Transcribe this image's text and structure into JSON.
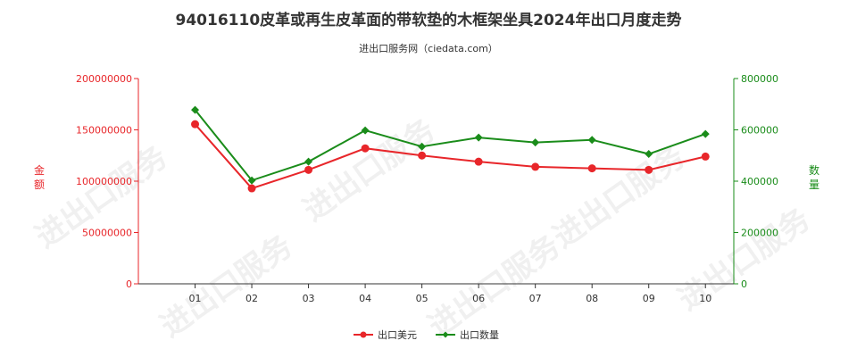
{
  "title": "94016110皮革或再生皮革面的带软垫的木框架坐具2024年出口月度走势",
  "subtitle": "进出口服务网（ciedata.com）",
  "colors": {
    "value": "#e8262a",
    "quantity": "#1a8c1a",
    "left_axis": "#e8262a",
    "right_axis": "#1a8c1a"
  },
  "chart_data": {
    "type": "line",
    "categories": [
      "01",
      "02",
      "03",
      "04",
      "05",
      "06",
      "07",
      "08",
      "09",
      "10"
    ],
    "y_left": {
      "label": "金额",
      "ylim": [
        0,
        200000000
      ],
      "ticks": [
        "0",
        "50000000",
        "100000000",
        "150000000",
        "200000000"
      ]
    },
    "y_right": {
      "label": "数量",
      "ylim": [
        0,
        800000
      ],
      "ticks": [
        "0",
        "200000",
        "400000",
        "600000",
        "800000"
      ]
    },
    "series": [
      {
        "name": "出口美元",
        "axis": "left",
        "values": [
          155500000,
          93000000,
          111000000,
          132000000,
          125000000,
          119000000,
          114000000,
          112500000,
          111000000,
          124000000
        ]
      },
      {
        "name": "出口数量",
        "axis": "right",
        "values": [
          678000,
          403000,
          476000,
          598000,
          535000,
          570000,
          551000,
          561000,
          506000,
          584000
        ]
      }
    ],
    "legend": {
      "position": "bottom-center"
    },
    "grid": false
  }
}
